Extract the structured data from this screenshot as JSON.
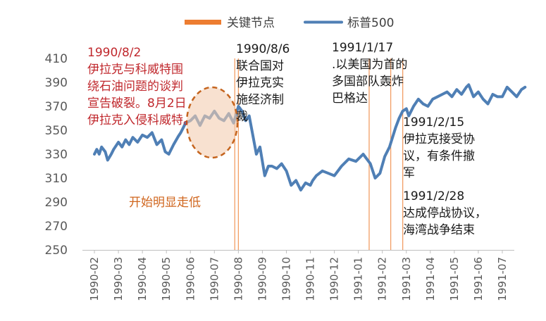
{
  "chart_data": {
    "type": "line",
    "title": "",
    "xlabel": "",
    "ylabel": "",
    "ylim": [
      250,
      410
    ],
    "yticks": [
      250,
      270,
      290,
      310,
      330,
      350,
      370,
      390,
      410
    ],
    "x_tick_labels": [
      "1990-02",
      "1990-03",
      "1990-04",
      "1990-05",
      "1990-06",
      "1990-07",
      "1990-08",
      "1990-09",
      "1990-10",
      "1990-11",
      "1990-12",
      "1991-01",
      "1991-02",
      "1991-03",
      "1991-04",
      "1991-05",
      "1991-06",
      "1991-07"
    ],
    "legend": [
      {
        "name": "关键节点",
        "color": "#ed7d31"
      },
      {
        "name": "标普500",
        "color": "#4f7fb5"
      }
    ],
    "series": [
      {
        "name": "标普500",
        "color": "#4f7fb5",
        "x": [
          0.0,
          0.1,
          0.2,
          0.3,
          0.45,
          0.55,
          0.7,
          0.8,
          1.0,
          1.15,
          1.3,
          1.45,
          1.6,
          1.8,
          2.0,
          2.2,
          2.4,
          2.6,
          2.8,
          2.95,
          3.1,
          3.3,
          3.5,
          3.6,
          3.8,
          4.0,
          4.2,
          4.4,
          4.6,
          4.8,
          5.0,
          5.2,
          5.4,
          5.6,
          5.8,
          6.0,
          6.15,
          6.3,
          6.45,
          6.6,
          6.75,
          6.9,
          7.0,
          7.1,
          7.25,
          7.4,
          7.6,
          7.8,
          8.0,
          8.2,
          8.4,
          8.6,
          8.8,
          9.0,
          9.1,
          9.25,
          9.5,
          9.75,
          10.0,
          10.3,
          10.6,
          10.9,
          11.2,
          11.5,
          11.7,
          11.9,
          12.1,
          12.3,
          12.55,
          12.7,
          12.85,
          13.0,
          13.1,
          13.3,
          13.5,
          13.7,
          13.9,
          14.1,
          14.3,
          14.5,
          14.7,
          14.9,
          15.1,
          15.3,
          15.5,
          15.6,
          15.8,
          16.0,
          16.2,
          16.4,
          16.6,
          16.8,
          17.0,
          17.2,
          17.4,
          17.6,
          17.8,
          17.95
        ],
        "values": [
          330,
          334,
          330,
          336,
          332,
          325,
          330,
          334,
          340,
          336,
          342,
          338,
          344,
          340,
          346,
          344,
          348,
          338,
          342,
          332,
          330,
          338,
          345,
          348,
          356,
          358,
          362,
          354,
          362,
          360,
          366,
          360,
          358,
          364,
          356,
          370,
          366,
          358,
          362,
          346,
          330,
          336,
          324,
          312,
          320,
          320,
          318,
          322,
          316,
          304,
          308,
          300,
          306,
          304,
          308,
          312,
          316,
          314,
          312,
          320,
          326,
          324,
          330,
          322,
          310,
          314,
          328,
          336,
          352,
          360,
          366,
          368,
          362,
          370,
          376,
          372,
          370,
          376,
          378,
          380,
          382,
          378,
          384,
          380,
          386,
          388,
          378,
          382,
          376,
          372,
          380,
          378,
          378,
          386,
          382,
          378,
          384,
          386
        ]
      }
    ],
    "key_dates": [
      {
        "date": "1990/8/2",
        "x": 5.85
      },
      {
        "date": "1990/8/6",
        "x": 6.0
      },
      {
        "date": "1991/1/17",
        "x": 11.45
      },
      {
        "date": "1991/2/15",
        "x": 12.35
      },
      {
        "date": "1991/2/28",
        "x": 12.85
      }
    ],
    "annotations": [
      {
        "id": "aug2",
        "text": "1990/8/2\n伊拉克与科威特围\n绕石油问题的谈判\n宣告破裂。8月2日\n伊拉克入侵科威特。"
      },
      {
        "id": "decline",
        "text": "开始明显走低"
      },
      {
        "id": "aug6",
        "text": "1990/8/6\n联合国对\n伊拉克实\n施经济制\n裁"
      },
      {
        "id": "jan17",
        "text": "1991/1/17\n.以美国为首的\n多国部队轰炸\n巴格达"
      },
      {
        "id": "feb15",
        "text": "1991/2/15\n伊拉克接受协\n议，有条件撤\n军"
      },
      {
        "id": "feb28",
        "text": "1991/2/28\n达成停战协议，\n海湾战争结束"
      }
    ]
  }
}
